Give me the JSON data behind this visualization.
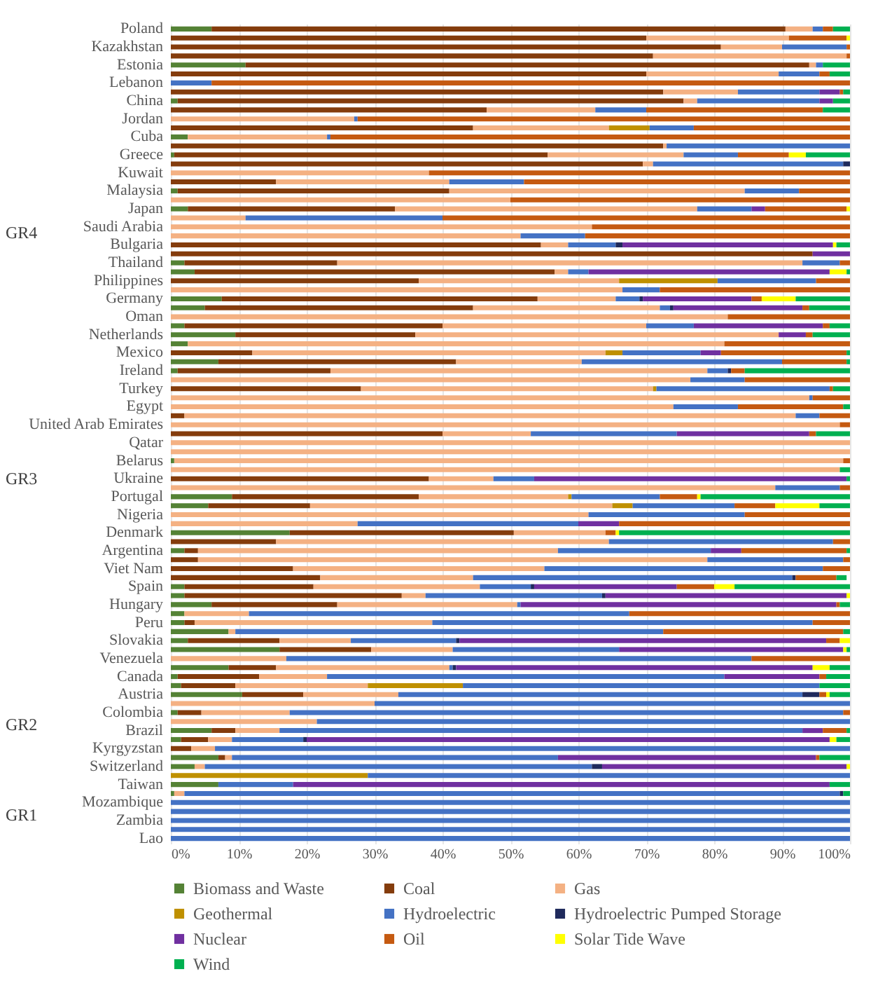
{
  "chart_data": {
    "type": "bar",
    "orientation": "horizontal",
    "stacked": true,
    "categories": [
      "Poland",
      null,
      "Kazakhstan",
      null,
      "Estonia",
      null,
      "Lebanon",
      null,
      "China",
      null,
      "Jordan",
      null,
      "Cuba",
      null,
      "Greece",
      null,
      "Kuwait",
      null,
      "Malaysia",
      null,
      "Japan",
      null,
      "Saudi Arabia",
      null,
      "Bulgaria",
      null,
      "Thailand",
      null,
      "Philippines",
      null,
      "Germany",
      null,
      "Oman",
      null,
      "Netherlands",
      null,
      "Mexico",
      null,
      "Ireland",
      null,
      "Turkey",
      null,
      "Egypt",
      null,
      "United Arab Emirates",
      null,
      "Qatar",
      null,
      "Belarus",
      null,
      "Ukraine",
      null,
      "Portugal",
      null,
      "Nigeria",
      null,
      "Denmark",
      null,
      "Argentina",
      null,
      "Viet Nam",
      null,
      "Spain",
      null,
      "Hungary",
      null,
      "Peru",
      null,
      "Slovakia",
      null,
      "Venezuela",
      null,
      "Canada",
      null,
      "Austria",
      null,
      "Colombia",
      null,
      "Brazil",
      null,
      "Kyrgyzstan",
      null,
      "Switzerland",
      null,
      "Taiwan",
      null,
      "Mozambique",
      null,
      "Zambia",
      null,
      "Lao"
    ],
    "series": [
      {
        "name": "Biomass and Waste",
        "color": "#548235",
        "values": [
          6,
          0,
          0,
          0,
          11,
          0,
          0,
          0,
          1,
          0,
          0,
          0,
          2.5,
          0,
          0.5,
          0,
          0,
          0,
          1,
          0,
          2.5,
          0,
          0,
          0,
          0,
          0,
          2,
          3.5,
          0,
          0,
          7.5,
          5,
          0,
          2,
          9.5,
          2.5,
          0,
          7,
          1,
          0,
          0,
          0,
          0,
          0,
          0,
          0,
          0,
          0,
          0.5,
          0,
          0,
          0,
          9,
          5.5,
          0,
          0,
          17.5,
          0,
          2,
          0,
          0,
          0,
          2,
          2,
          6,
          2,
          2,
          8.5,
          2.5,
          16,
          0,
          8.5,
          1,
          1.5,
          10.5,
          0,
          1,
          0,
          6,
          1.5,
          0,
          7,
          3.5,
          0,
          7,
          0.5,
          0,
          0,
          0,
          0,
          0
        ]
      },
      {
        "name": "Coal",
        "color": "#843c0c",
        "values": [
          84.5,
          70,
          81,
          71,
          83,
          70,
          0,
          72.5,
          74.5,
          46.5,
          0,
          44.5,
          0,
          72.5,
          55,
          69.5,
          0,
          15.5,
          40,
          0,
          30.5,
          0,
          0,
          0,
          54.5,
          94.5,
          22.5,
          53,
          36.5,
          0,
          46.5,
          39.5,
          0,
          38,
          26.5,
          0,
          12,
          35,
          22.5,
          0,
          28,
          0,
          0,
          2,
          0,
          40,
          0,
          0,
          0,
          0,
          38,
          0,
          27.5,
          15,
          0,
          0,
          33,
          15.5,
          2,
          4,
          18,
          22,
          19,
          32,
          18.5,
          0,
          1.5,
          0,
          13.5,
          13.5,
          0,
          7,
          12,
          8,
          9,
          0,
          3.5,
          0,
          3.5,
          4,
          3,
          1,
          0,
          0,
          0,
          0,
          0,
          0,
          0,
          0,
          0
        ]
      },
      {
        "name": "Gas",
        "color": "#f4b183",
        "values": [
          4,
          21,
          9,
          28.5,
          1,
          19.5,
          0,
          11,
          2,
          16,
          27,
          20,
          20.5,
          0.5,
          20,
          1.5,
          38,
          25.5,
          43.5,
          50,
          44.5,
          11,
          62,
          51.5,
          4,
          0,
          68.5,
          2,
          29.5,
          66.5,
          11.5,
          27.5,
          82,
          30,
          53.5,
          79,
          52,
          18.5,
          55.5,
          76.5,
          43,
          94,
          74,
          90,
          98.5,
          13,
          100,
          100,
          98.5,
          98.5,
          9.5,
          89,
          22,
          44.5,
          61.5,
          27.5,
          13.5,
          49,
          53,
          75,
          37,
          22.5,
          24.5,
          3.5,
          26.5,
          9.5,
          35,
          1,
          10.5,
          12,
          17,
          25.5,
          10,
          19.5,
          14,
          30,
          13,
          21.5,
          6.5,
          3.5,
          3.5,
          1,
          1.5,
          0,
          0,
          1.5,
          0,
          0,
          0,
          0,
          0
        ]
      },
      {
        "name": "Geothermal",
        "color": "#bf9000",
        "values": [
          0,
          0,
          0,
          0,
          0,
          0,
          0,
          0,
          0,
          0,
          0,
          6,
          0,
          0,
          0,
          0,
          0,
          0,
          0,
          0,
          0,
          0,
          0,
          0,
          0,
          0,
          0,
          0,
          14.5,
          0,
          0,
          0,
          0,
          0,
          0,
          0,
          2.5,
          0,
          0,
          0,
          0.5,
          0,
          0,
          0,
          0,
          0,
          0,
          0,
          0,
          0,
          0,
          0,
          0.5,
          3,
          0,
          0,
          0,
          0,
          0,
          0,
          0,
          0,
          0,
          0,
          0,
          0,
          0,
          0,
          0,
          0,
          0,
          0,
          0,
          14,
          0,
          0,
          0,
          0,
          0,
          0,
          0,
          0,
          0,
          29,
          0,
          0,
          0,
          0,
          0,
          0,
          0
        ]
      },
      {
        "name": "Hydroelectric",
        "color": "#4472c4",
        "values": [
          1.5,
          0,
          9.5,
          0,
          1,
          6,
          6,
          12,
          18,
          7.5,
          0.5,
          6.5,
          0.5,
          27,
          8,
          28,
          0,
          11,
          8,
          0,
          8,
          29,
          0,
          9.5,
          7,
          0,
          5.5,
          3,
          14.5,
          5.5,
          3.5,
          1.5,
          0,
          7,
          0,
          0,
          11.5,
          29.5,
          3,
          8,
          25.5,
          0.5,
          9.5,
          3.5,
          0,
          21.5,
          0,
          0,
          0,
          0,
          6,
          9.5,
          13,
          15,
          23,
          32.5,
          0,
          33,
          22.5,
          20,
          41,
          47,
          7.5,
          26,
          0.5,
          56,
          56,
          63,
          15.5,
          24.5,
          68.5,
          0.5,
          58.5,
          52.5,
          59.5,
          70,
          81.5,
          78.5,
          77,
          10.5,
          93.5,
          48,
          57,
          71,
          11,
          96.5,
          100,
          100,
          100,
          100,
          100
        ]
      },
      {
        "name": "Hydroelectric Pumped Storage",
        "color": "#1f2a5c",
        "values": [
          0,
          0,
          0,
          0,
          0,
          0,
          0,
          0,
          0,
          0,
          0,
          0,
          0,
          0,
          0,
          1,
          0,
          0,
          0,
          0,
          0,
          0,
          0,
          0,
          1,
          0,
          0,
          0,
          0,
          0,
          0.5,
          0.5,
          0,
          0,
          0,
          0,
          0,
          0,
          0.5,
          0,
          0,
          0,
          0,
          0,
          0,
          0,
          0,
          0,
          0,
          0,
          0,
          0,
          0,
          0,
          0,
          0,
          0,
          0,
          0,
          0,
          0,
          0.5,
          0.5,
          0.5,
          0,
          0,
          0,
          0,
          0.5,
          0,
          0,
          0.5,
          0,
          0,
          2.5,
          0,
          0,
          0,
          0,
          0.5,
          0,
          0,
          1.5,
          0,
          0,
          0.5,
          0,
          0,
          0,
          0,
          0
        ]
      },
      {
        "name": "Nuclear",
        "color": "#7030a0",
        "values": [
          0,
          0,
          0,
          0,
          0,
          0,
          0,
          3,
          2,
          0,
          0,
          0,
          0,
          0,
          0,
          0,
          0,
          0,
          0,
          0,
          2,
          0,
          0,
          0,
          31,
          5.5,
          0,
          35.5,
          0,
          0,
          16,
          19,
          0,
          19,
          4,
          0,
          3,
          0,
          0,
          0,
          0,
          0,
          0,
          0,
          0,
          19.5,
          0,
          0,
          0,
          0,
          46,
          0,
          0,
          0,
          0,
          6,
          0,
          0,
          4.5,
          0,
          0,
          0,
          21,
          35.5,
          46.5,
          0,
          0,
          0,
          54,
          33,
          0,
          52.5,
          14,
          0,
          0,
          0,
          0,
          0,
          3,
          77,
          0,
          38,
          36,
          0,
          79,
          0,
          0,
          0,
          0,
          0,
          0
        ]
      },
      {
        "name": "Oil",
        "color": "#c55a11",
        "values": [
          1.5,
          8.5,
          0.5,
          0.5,
          0,
          1.5,
          94,
          0.5,
          0,
          26,
          72.5,
          23,
          76.5,
          0,
          7.5,
          0,
          62,
          48,
          7.5,
          50,
          12,
          60,
          38,
          39,
          0,
          0,
          1.5,
          0,
          5,
          28,
          1.5,
          1,
          18,
          1,
          1,
          18.5,
          18.5,
          9.5,
          2,
          15.5,
          0.5,
          5.5,
          15.5,
          4.5,
          1.5,
          1,
          0,
          0,
          1,
          0,
          0,
          1.5,
          5.5,
          6,
          15.5,
          34,
          1.5,
          2.5,
          15.5,
          1,
          4,
          6,
          5.5,
          0,
          0.5,
          32.5,
          5.5,
          26.5,
          2,
          0,
          14.5,
          0,
          1,
          0,
          1,
          0,
          1,
          0,
          3.5,
          0,
          0,
          0.5,
          0,
          0,
          0,
          0,
          0,
          0,
          0,
          0,
          0
        ]
      },
      {
        "name": "Solar Tide Wave",
        "color": "#ffff00",
        "values": [
          0,
          0.5,
          0,
          0,
          0,
          0,
          0,
          0,
          0,
          0,
          0,
          0,
          0,
          0,
          2.5,
          0,
          0,
          0,
          0,
          0,
          0.5,
          0,
          0,
          0,
          0.5,
          0,
          0,
          2.5,
          0,
          0,
          5,
          0,
          0,
          0,
          0,
          0,
          0,
          0,
          0,
          0,
          0,
          0,
          0,
          0,
          0,
          0,
          0,
          0,
          0,
          0,
          0,
          0,
          0.5,
          6.5,
          0,
          0,
          0.5,
          0,
          0,
          0,
          0,
          0,
          3,
          0.5,
          0,
          0,
          0,
          0,
          1.5,
          0.5,
          0,
          2.5,
          0,
          0,
          0.5,
          0,
          0,
          0,
          0,
          1,
          0,
          0,
          0.5,
          0,
          0,
          0,
          0,
          0,
          0,
          0,
          0
        ]
      },
      {
        "name": "Wind",
        "color": "#00b050",
        "values": [
          2.5,
          0,
          0,
          0,
          4,
          3,
          0,
          1,
          2.5,
          4,
          0,
          0,
          0,
          0,
          6.5,
          0,
          0,
          0,
          0,
          0,
          0,
          0,
          0,
          0,
          2,
          0,
          0,
          0.5,
          0,
          0,
          8,
          6,
          0,
          3,
          5.5,
          0,
          0.5,
          0.5,
          15.5,
          0,
          2.5,
          0,
          1,
          0,
          0,
          5,
          0,
          0,
          0,
          1.5,
          0.5,
          0,
          22,
          4.5,
          0,
          0,
          34,
          0,
          0.5,
          0,
          0,
          1.5,
          17,
          0,
          1.5,
          0,
          0,
          1,
          0,
          0.5,
          0,
          3,
          3.5,
          4.5,
          3,
          0,
          0,
          0,
          0.5,
          2,
          0,
          4.5,
          0,
          0,
          3,
          1,
          0,
          0,
          0,
          0,
          0
        ]
      }
    ],
    "xlim": [
      0,
      100
    ],
    "xticks": [
      {
        "value": 0,
        "label": "0%"
      },
      {
        "value": 10,
        "label": "10%"
      },
      {
        "value": 20,
        "label": "20%"
      },
      {
        "value": 30,
        "label": "30%"
      },
      {
        "value": 40,
        "label": "40%"
      },
      {
        "value": 50,
        "label": "50%"
      },
      {
        "value": 60,
        "label": "60%"
      },
      {
        "value": 70,
        "label": "70%"
      },
      {
        "value": 80,
        "label": "80%"
      },
      {
        "value": 90,
        "label": "90%"
      },
      {
        "value": 100,
        "label": "100%"
      }
    ],
    "grid": "x",
    "legend": "bottom",
    "annotations": [
      "GR4",
      "GR3",
      "GR2",
      "GR1"
    ]
  }
}
